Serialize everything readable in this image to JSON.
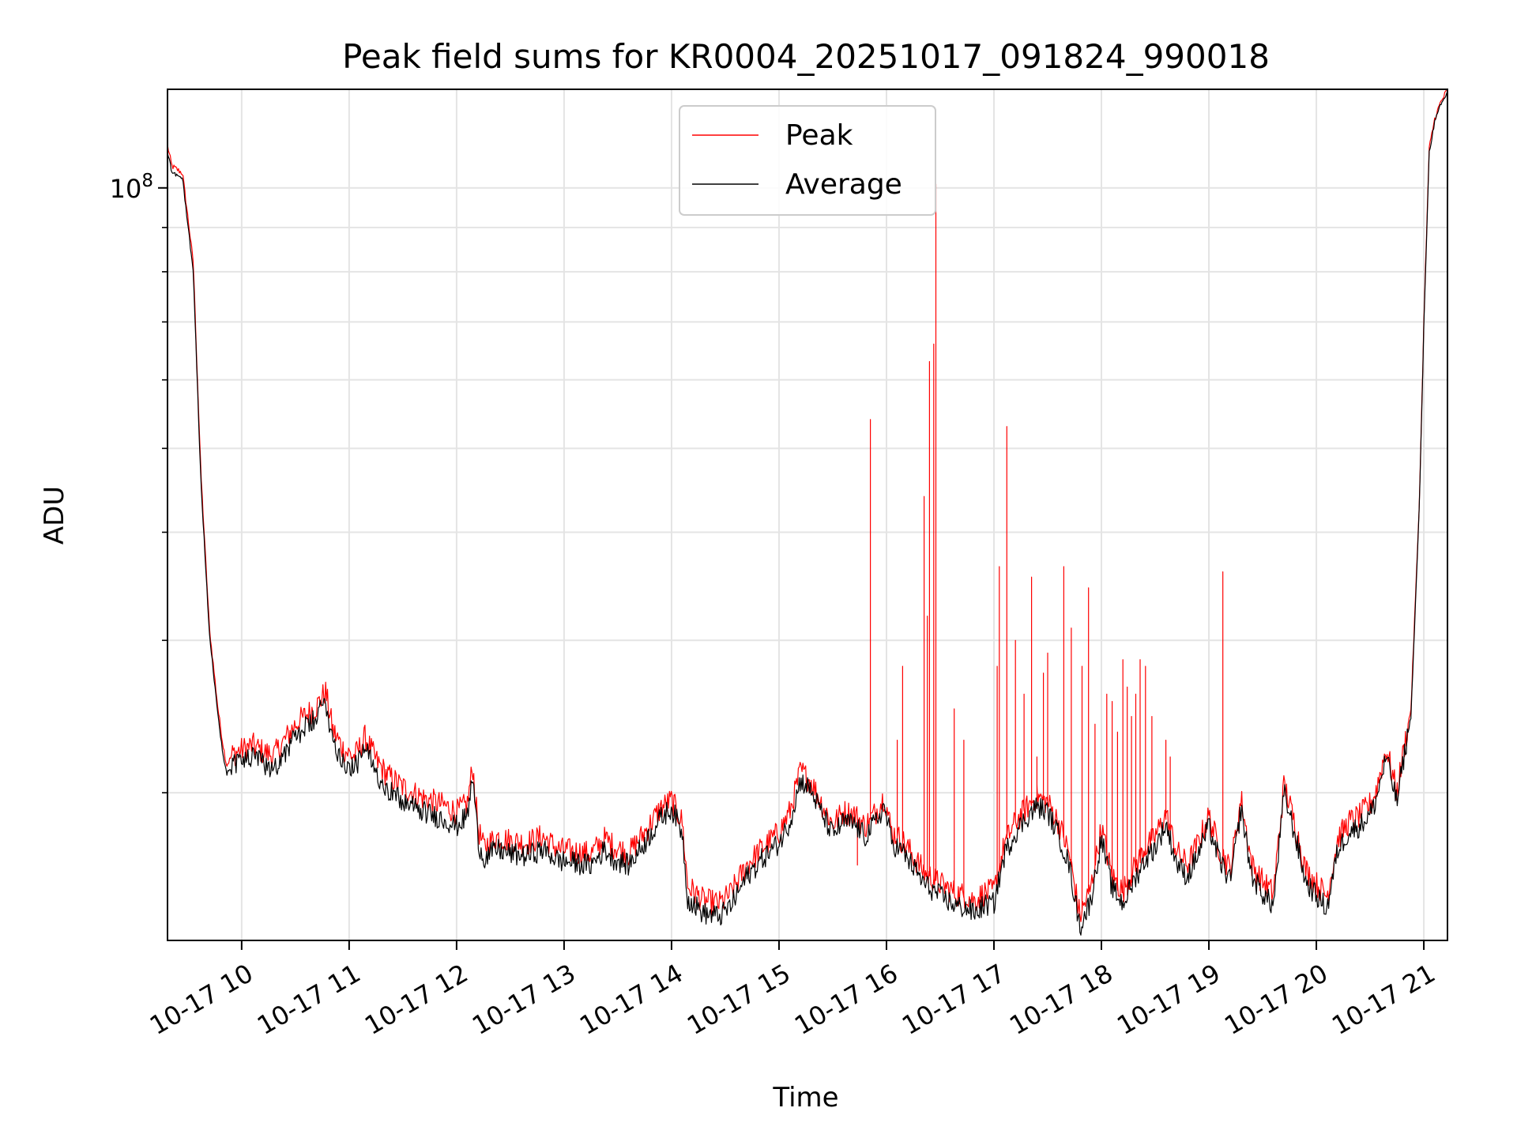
{
  "chart_data": {
    "type": "line",
    "title": "Peak field sums for KR0004_20251017_091824_990018",
    "xlabel": "Time",
    "ylabel": "ADU",
    "y_scale": "log",
    "ylim": [
      13500000,
      130000000
    ],
    "xlim_hours": [
      9.31,
      21.22
    ],
    "grid": true,
    "legend_position": "upper-center",
    "x_tick_labels": [
      {
        "hour": 10,
        "label": "10-17 10"
      },
      {
        "hour": 11,
        "label": "10-17 11"
      },
      {
        "hour": 12,
        "label": "10-17 12"
      },
      {
        "hour": 13,
        "label": "10-17 13"
      },
      {
        "hour": 14,
        "label": "10-17 14"
      },
      {
        "hour": 15,
        "label": "10-17 15"
      },
      {
        "hour": 16,
        "label": "10-17 16"
      },
      {
        "hour": 17,
        "label": "10-17 17"
      },
      {
        "hour": 18,
        "label": "10-17 18"
      },
      {
        "hour": 19,
        "label": "10-17 19"
      },
      {
        "hour": 20,
        "label": "10-17 20"
      },
      {
        "hour": 21,
        "label": "10-17 21"
      }
    ],
    "y_major_ticks": [
      {
        "value": 100000000,
        "base": "10",
        "exp": "8"
      }
    ],
    "y_minor_tick_values": [
      20000000,
      30000000,
      40000000,
      50000000,
      60000000,
      70000000,
      80000000,
      90000000
    ],
    "series": [
      {
        "name": "Peak",
        "color": "#ff0000",
        "line_width": 1.2,
        "baseline": {
          "hours": [
            9.31,
            9.35,
            9.45,
            9.55,
            9.62,
            9.7,
            9.78,
            9.82,
            9.86,
            9.92,
            10.0,
            10.1,
            10.2,
            10.3,
            10.4,
            10.5,
            10.6,
            10.7,
            10.78,
            10.85,
            10.9,
            10.95,
            11.05,
            11.15,
            11.25,
            11.35,
            11.5,
            11.7,
            11.9,
            12.0,
            12.1,
            12.15,
            12.2,
            12.25,
            12.38,
            12.5,
            12.65,
            12.8,
            12.95,
            13.1,
            13.25,
            13.38,
            13.45,
            13.6,
            13.75,
            13.9,
            14.0,
            14.1,
            14.15,
            14.3,
            14.45,
            14.55,
            14.7,
            14.85,
            15.0,
            15.1,
            15.2,
            15.3,
            15.4,
            15.5,
            15.6,
            15.7,
            15.8,
            15.9,
            15.98,
            16.05,
            16.15,
            16.25,
            16.35,
            16.5,
            16.65,
            16.75,
            16.82,
            16.9,
            17.0,
            17.1,
            17.2,
            17.3,
            17.4,
            17.5,
            17.6,
            17.7,
            17.8,
            17.9,
            18.0,
            18.1,
            18.2,
            18.3,
            18.4,
            18.5,
            18.6,
            18.7,
            18.8,
            18.9,
            19.0,
            19.1,
            19.2,
            19.3,
            19.4,
            19.5,
            19.6,
            19.7,
            19.8,
            19.9,
            20.0,
            20.1,
            20.2,
            20.3,
            20.4,
            20.5,
            20.55,
            20.65,
            20.75,
            20.82,
            20.88,
            20.92,
            20.96,
            21.0,
            21.05,
            21.1,
            21.15,
            21.22
          ],
          "values": [
            112000000,
            106000000,
            104000000,
            82000000,
            47000000,
            31000000,
            25000000,
            23000000,
            21500000,
            22200000,
            22400000,
            22700000,
            22300000,
            22100000,
            23000000,
            24000000,
            24600000,
            25200000,
            26200000,
            23600000,
            23000000,
            22400000,
            22000000,
            23200000,
            21800000,
            21000000,
            20300000,
            19700000,
            19300000,
            19000000,
            19400000,
            21500000,
            18200000,
            17300000,
            17800000,
            17600000,
            17500000,
            17800000,
            17200000,
            17100000,
            17000000,
            17700000,
            17400000,
            17000000,
            18000000,
            19200000,
            19600000,
            18500000,
            15600000,
            15000000,
            14900000,
            15300000,
            16500000,
            17300000,
            18000000,
            19000000,
            21200000,
            20600000,
            19400000,
            18400000,
            19000000,
            18900000,
            18300000,
            19000000,
            19800000,
            18000000,
            17600000,
            16900000,
            16200000,
            15700000,
            15300000,
            15200000,
            15000000,
            15300000,
            15400000,
            17500000,
            18500000,
            19200000,
            19800000,
            19500000,
            18500000,
            17000000,
            14400000,
            15500000,
            18200000,
            16000000,
            15400000,
            16300000,
            17200000,
            17800000,
            18900000,
            17100000,
            16500000,
            17500000,
            18800000,
            17200000,
            16300000,
            19700000,
            16500000,
            15800000,
            15300000,
            20500000,
            18400000,
            16300000,
            15700000,
            15200000,
            17700000,
            18500000,
            18800000,
            19400000,
            20000000,
            22500000,
            20000000,
            22700000,
            25000000,
            33000000,
            44000000,
            70000000,
            111000000,
            120000000,
            125000000,
            130000000
          ]
        },
        "spikes": [
          {
            "hour": 15.73,
            "value": 16500000
          },
          {
            "hour": 15.85,
            "value": 54000000
          },
          {
            "hour": 16.1,
            "value": 23000000
          },
          {
            "hour": 16.15,
            "value": 28000000
          },
          {
            "hour": 16.35,
            "value": 44000000
          },
          {
            "hour": 16.38,
            "value": 32000000
          },
          {
            "hour": 16.4,
            "value": 63000000
          },
          {
            "hour": 16.44,
            "value": 66000000
          },
          {
            "hour": 16.46,
            "value": 101000000
          },
          {
            "hour": 16.63,
            "value": 25000000
          },
          {
            "hour": 16.72,
            "value": 23000000
          },
          {
            "hour": 17.03,
            "value": 28000000
          },
          {
            "hour": 17.05,
            "value": 36500000
          },
          {
            "hour": 17.12,
            "value": 53000000
          },
          {
            "hour": 17.2,
            "value": 30000000
          },
          {
            "hour": 17.28,
            "value": 26000000
          },
          {
            "hour": 17.35,
            "value": 35500000
          },
          {
            "hour": 17.4,
            "value": 22000000
          },
          {
            "hour": 17.46,
            "value": 27500000
          },
          {
            "hour": 17.5,
            "value": 29000000
          },
          {
            "hour": 17.65,
            "value": 36500000
          },
          {
            "hour": 17.72,
            "value": 31000000
          },
          {
            "hour": 17.82,
            "value": 28000000
          },
          {
            "hour": 17.88,
            "value": 34500000
          },
          {
            "hour": 17.94,
            "value": 24000000
          },
          {
            "hour": 18.05,
            "value": 26000000
          },
          {
            "hour": 18.1,
            "value": 25500000
          },
          {
            "hour": 18.15,
            "value": 23500000
          },
          {
            "hour": 18.2,
            "value": 28500000
          },
          {
            "hour": 18.24,
            "value": 26500000
          },
          {
            "hour": 18.28,
            "value": 24500000
          },
          {
            "hour": 18.32,
            "value": 26000000
          },
          {
            "hour": 18.36,
            "value": 28500000
          },
          {
            "hour": 18.41,
            "value": 28000000
          },
          {
            "hour": 18.47,
            "value": 24500000
          },
          {
            "hour": 18.6,
            "value": 23000000
          },
          {
            "hour": 18.64,
            "value": 22000000
          },
          {
            "hour": 19.13,
            "value": 36000000
          }
        ]
      },
      {
        "name": "Average",
        "color": "#000000",
        "line_width": 1.2,
        "hours": [
          9.31,
          9.35,
          9.45,
          9.55,
          9.62,
          9.7,
          9.78,
          9.82,
          9.86,
          9.92,
          10.0,
          10.1,
          10.2,
          10.3,
          10.4,
          10.5,
          10.6,
          10.7,
          10.78,
          10.85,
          10.9,
          10.95,
          11.05,
          11.15,
          11.25,
          11.35,
          11.5,
          11.7,
          11.9,
          12.0,
          12.1,
          12.15,
          12.2,
          12.25,
          12.38,
          12.5,
          12.65,
          12.8,
          12.95,
          13.1,
          13.25,
          13.38,
          13.45,
          13.6,
          13.75,
          13.9,
          14.0,
          14.1,
          14.15,
          14.3,
          14.45,
          14.55,
          14.7,
          14.85,
          15.0,
          15.1,
          15.2,
          15.3,
          15.4,
          15.5,
          15.6,
          15.7,
          15.8,
          15.9,
          15.98,
          16.05,
          16.15,
          16.25,
          16.35,
          16.5,
          16.65,
          16.75,
          16.82,
          16.9,
          17.0,
          17.1,
          17.2,
          17.3,
          17.4,
          17.5,
          17.6,
          17.7,
          17.8,
          17.9,
          18.0,
          18.1,
          18.2,
          18.3,
          18.4,
          18.5,
          18.6,
          18.7,
          18.8,
          18.9,
          19.0,
          19.1,
          19.2,
          19.3,
          19.4,
          19.5,
          19.6,
          19.7,
          19.8,
          19.9,
          20.0,
          20.1,
          20.2,
          20.3,
          20.4,
          20.5,
          20.55,
          20.65,
          20.75,
          20.82,
          20.88,
          20.92,
          20.96,
          21.0,
          21.05,
          21.1,
          21.15,
          21.22
        ],
        "values": [
          110000000,
          104500000,
          102500000,
          80000000,
          46000000,
          30500000,
          24500000,
          22500000,
          21000000,
          21600000,
          21800000,
          22000000,
          21600000,
          21400000,
          22200000,
          23200000,
          23800000,
          24400000,
          25600000,
          22900000,
          22300000,
          21700000,
          21300000,
          22500000,
          21100000,
          20300000,
          19500000,
          19000000,
          18600000,
          18300000,
          18800000,
          20900000,
          17600000,
          16800000,
          17200000,
          17000000,
          16900000,
          17200000,
          16700000,
          16600000,
          16500000,
          17200000,
          16800000,
          16500000,
          17500000,
          18700000,
          19200000,
          18000000,
          15100000,
          14500000,
          14400000,
          14800000,
          16000000,
          16800000,
          17500000,
          18500000,
          20700000,
          20100000,
          18900000,
          17900000,
          18500000,
          18400000,
          17800000,
          18500000,
          19300000,
          17500000,
          17100000,
          16400000,
          15700000,
          15200000,
          14800000,
          14700000,
          14500000,
          14800000,
          14900000,
          17000000,
          18000000,
          18700000,
          19300000,
          19000000,
          17900000,
          16500000,
          14000000,
          15000000,
          17700000,
          15500000,
          14900000,
          15800000,
          16700000,
          17300000,
          18400000,
          16600000,
          16000000,
          17000000,
          18300000,
          16700000,
          15800000,
          19200000,
          16000000,
          15300000,
          14800000,
          20000000,
          17900000,
          15800000,
          15200000,
          14700000,
          17200000,
          18000000,
          18300000,
          18900000,
          19500000,
          22000000,
          19500000,
          22200000,
          24500000,
          32500000,
          43500000,
          69000000,
          110000000,
          119000000,
          124000000,
          129000000
        ]
      }
    ]
  }
}
